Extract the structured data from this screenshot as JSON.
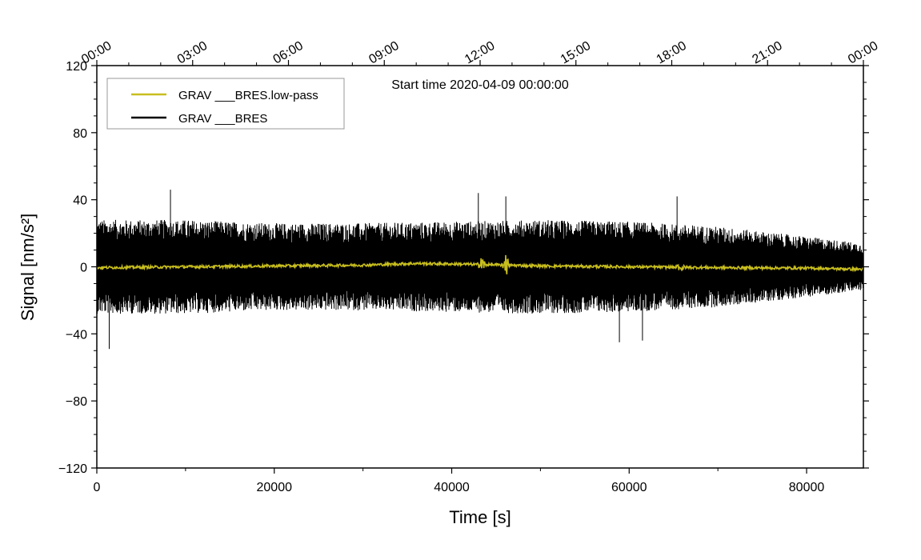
{
  "chart_data": {
    "type": "line",
    "annotation": "Start time 2020-04-09 00:00:00",
    "xlabel": "Time [s]",
    "ylabel": "Signal [nm/s²]",
    "xlim": [
      0,
      86400
    ],
    "ylim": [
      -120,
      120
    ],
    "x_ticks": [
      0,
      20000,
      40000,
      60000,
      80000
    ],
    "x_tick_labels": [
      "0",
      "20000",
      "40000",
      "60000",
      "80000"
    ],
    "y_ticks": [
      -120,
      -80,
      -40,
      0,
      40,
      80,
      120
    ],
    "y_tick_labels": [
      "−120",
      "−80",
      "−40",
      "0",
      "40",
      "80",
      "120"
    ],
    "top_axis": {
      "ticks_seconds": [
        0,
        10800,
        21600,
        32400,
        43200,
        54000,
        64800,
        75600,
        86400
      ],
      "labels": [
        "00:00",
        "03:00",
        "06:00",
        "09:00",
        "12:00",
        "15:00",
        "18:00",
        "21:00",
        "00:00"
      ]
    },
    "legend": {
      "placement": "top-left",
      "entries": [
        {
          "label": "GRAV ___BRES.low-pass",
          "color": "#c8be1e"
        },
        {
          "label": "GRAV ___BRES",
          "color": "#000000"
        }
      ]
    },
    "series": [
      {
        "name": "GRAV ___BRES",
        "color": "#000000",
        "note": "dense noise signal",
        "envelope_x": [
          0,
          10000,
          20000,
          30000,
          40000,
          50000,
          60000,
          70000,
          80000,
          86400
        ],
        "envelope_amplitude": [
          28,
          28,
          26,
          26,
          27,
          28,
          27,
          24,
          18,
          14
        ],
        "spikes": [
          {
            "x": 1400,
            "y": -49
          },
          {
            "x": 8300,
            "y": 46
          },
          {
            "x": 43000,
            "y": 44
          },
          {
            "x": 46100,
            "y": 42
          },
          {
            "x": 58900,
            "y": -45
          },
          {
            "x": 61500,
            "y": -44
          },
          {
            "x": 65400,
            "y": 42
          }
        ]
      },
      {
        "name": "GRAV ___BRES.low-pass",
        "color": "#c8be1e",
        "x": [
          0,
          10000,
          20000,
          30000,
          36000,
          42000,
          50000,
          60000,
          70000,
          80000,
          86400
        ],
        "values": [
          -0.5,
          0,
          0.5,
          1,
          2,
          1.5,
          0.5,
          0,
          -0.5,
          -0.8,
          -1.5
        ],
        "bursts": [
          {
            "x": 43400,
            "amplitude": 5
          },
          {
            "x": 46100,
            "amplitude": 7
          },
          {
            "x": 65800,
            "amplitude": 4
          }
        ]
      }
    ],
    "grid": false
  }
}
